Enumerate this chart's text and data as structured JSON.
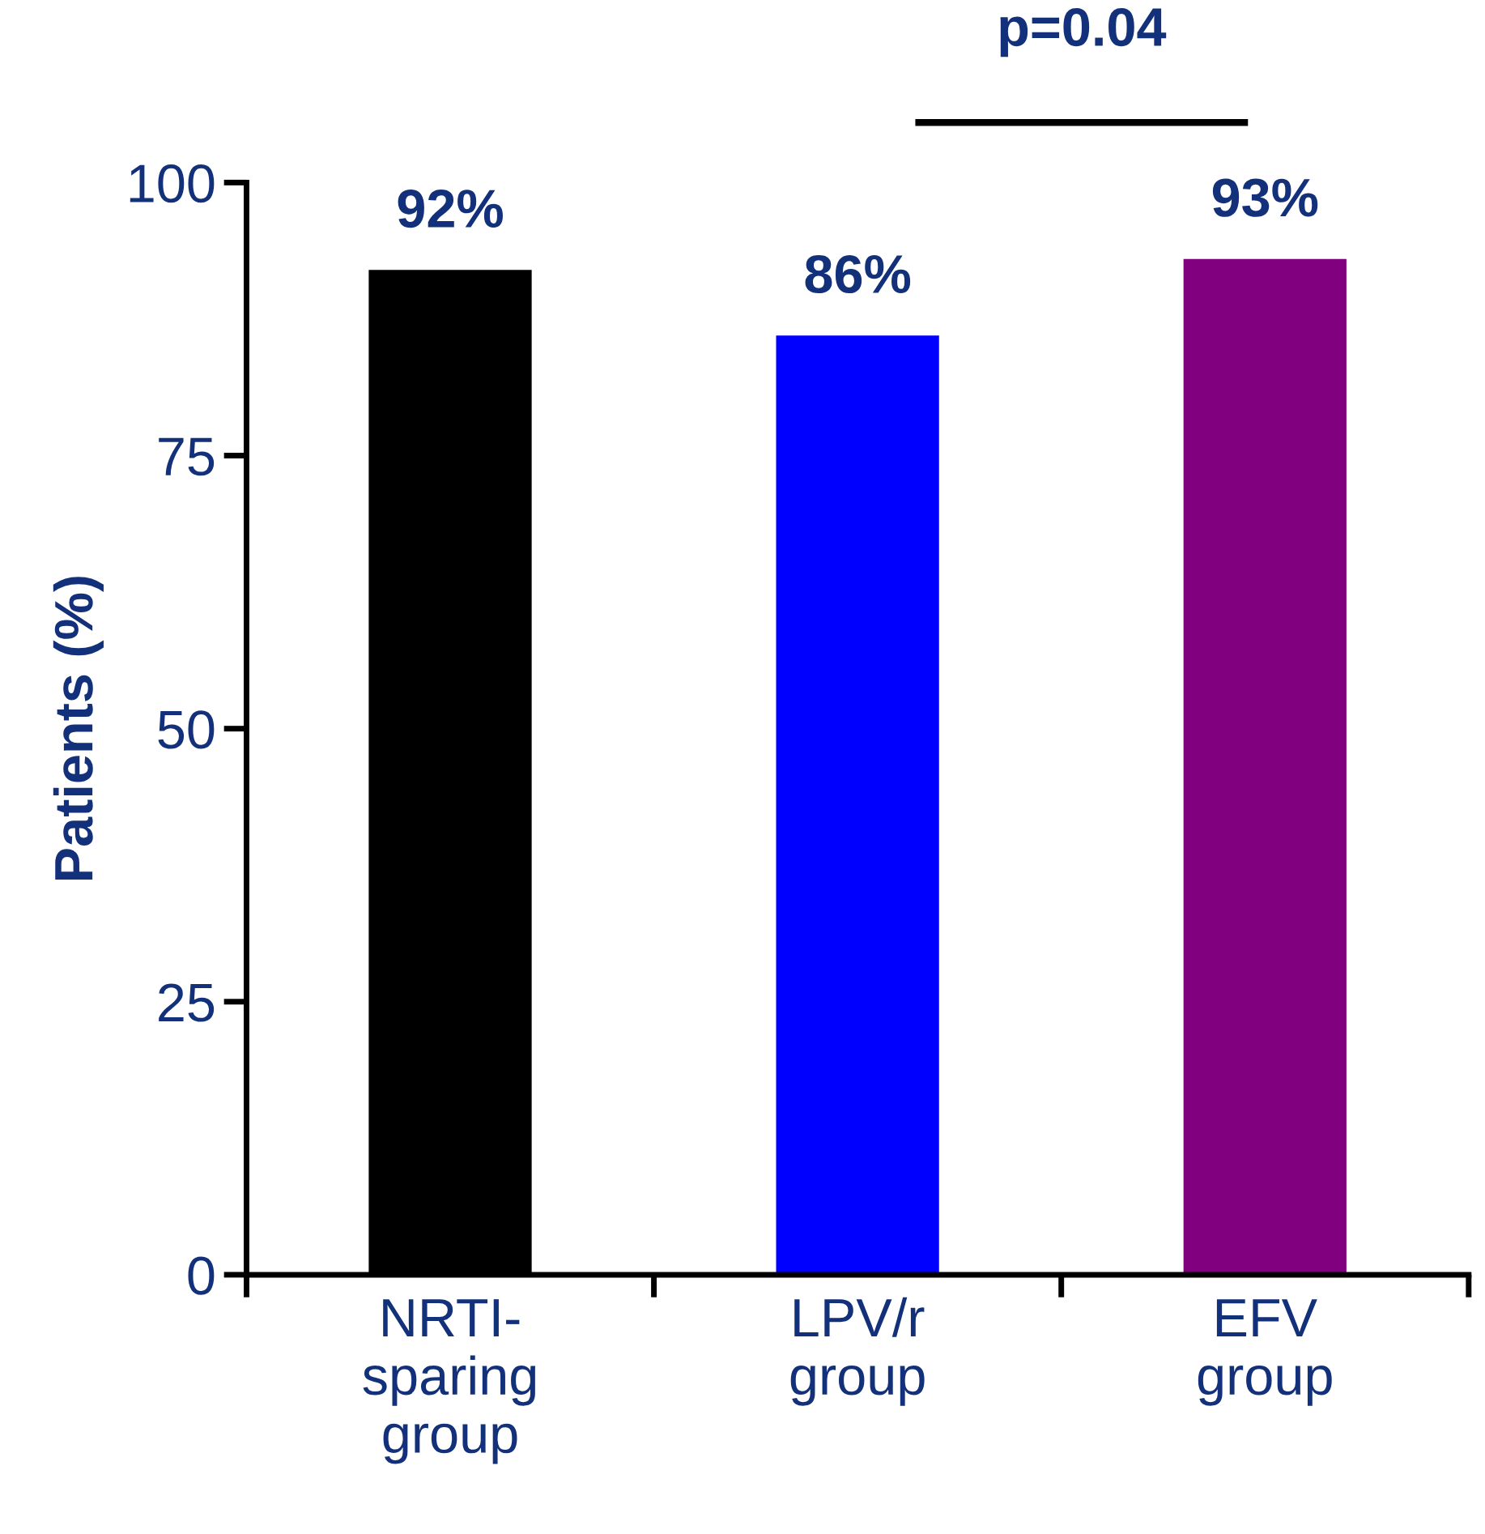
{
  "chart_data": {
    "type": "bar",
    "categories": [
      "NRTI-\nsparing\ngroup",
      "LPV/r\ngroup",
      "EFV\ngroup"
    ],
    "values": [
      92,
      86,
      93
    ],
    "colors": [
      "#000000",
      "#0000ff",
      "#800080"
    ],
    "ylabel": "Patients (%)",
    "ylim": [
      0,
      100
    ],
    "yticks": [
      0,
      25,
      50,
      75,
      100
    ],
    "value_labels": [
      "92%",
      "86%",
      "93%"
    ],
    "annotations": [
      "p=0.04"
    ],
    "grid": false,
    "legend": false
  }
}
